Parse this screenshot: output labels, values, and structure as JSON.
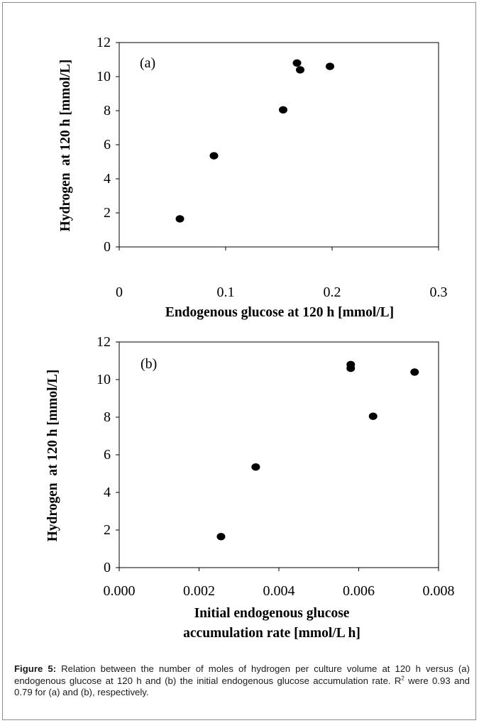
{
  "chart_data": [
    {
      "type": "scatter",
      "panel_label": "(a)",
      "xlabel": "Endogenous glucose at 120 h [mmol/L]",
      "ylabel": "Hydrogen  at 120 h [mmol/L]",
      "xlim": [
        0,
        0.3
      ],
      "ylim": [
        0,
        12
      ],
      "x_ticks": [
        "0",
        "0.1",
        "0.2",
        "0.3"
      ],
      "y_ticks": [
        "0",
        "2",
        "4",
        "6",
        "8",
        "10",
        "12"
      ],
      "grid": false,
      "points": [
        {
          "x": 0.057,
          "y": 1.65
        },
        {
          "x": 0.089,
          "y": 5.35
        },
        {
          "x": 0.154,
          "y": 8.05
        },
        {
          "x": 0.167,
          "y": 10.8
        },
        {
          "x": 0.17,
          "y": 10.4
        },
        {
          "x": 0.198,
          "y": 10.6
        }
      ]
    },
    {
      "type": "scatter",
      "panel_label": "(b)",
      "xlabel_lines": [
        "Initial endogenous glucose",
        "accumulation rate [mmol/L h]"
      ],
      "ylabel": "Hydrogen  at 120 h [mmol/L]",
      "xlim": [
        0,
        0.008
      ],
      "ylim": [
        0,
        12
      ],
      "x_ticks": [
        "0.000",
        "0.002",
        "0.004",
        "0.006",
        "0.008"
      ],
      "y_ticks": [
        "0",
        "2",
        "4",
        "6",
        "8",
        "10",
        "12"
      ],
      "grid": false,
      "points": [
        {
          "x": 0.00255,
          "y": 1.65
        },
        {
          "x": 0.00342,
          "y": 5.35
        },
        {
          "x": 0.0058,
          "y": 10.8
        },
        {
          "x": 0.0058,
          "y": 10.6
        },
        {
          "x": 0.00636,
          "y": 8.05
        },
        {
          "x": 0.0074,
          "y": 10.4
        }
      ]
    }
  ],
  "caption": {
    "label": "Figure 5:",
    "text_1": " Relation between the number of moles of hydrogen per culture volume at 120 h versus (a) endogenous glucose at 120 h and (b) the initial endogenous glucose accumulation rate. R",
    "sup": "2",
    "text_2": " were 0.93 and 0.79 for (a) and (b), respectively."
  }
}
